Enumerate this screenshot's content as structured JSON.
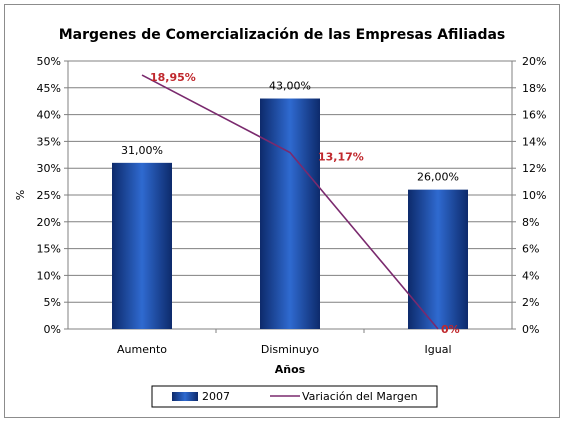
{
  "chart_data": {
    "type": "bar",
    "title": "Margenes de Comercialización de las Empresas Afiliadas",
    "xlabel": "Años",
    "ylabel": "%",
    "categories": [
      "Aumento",
      "Disminuyo",
      "Igual"
    ],
    "ylim": [
      0,
      50
    ],
    "y2lim": [
      0,
      20
    ],
    "yticks": [
      "0%",
      "5%",
      "10%",
      "15%",
      "20%",
      "25%",
      "30%",
      "35%",
      "40%",
      "45%",
      "50%"
    ],
    "y2ticks": [
      "0%",
      "2%",
      "4%",
      "6%",
      "8%",
      "10%",
      "12%",
      "14%",
      "16%",
      "18%",
      "20%"
    ],
    "grid": true,
    "legend_position": "bottom",
    "series": [
      {
        "name": "2007",
        "type": "bar",
        "axis": "left",
        "values": [
          31,
          43,
          26
        ],
        "labels": [
          "31,00%",
          "43,00%",
          "26,00%"
        ],
        "color": "#1f4fa8"
      },
      {
        "name": "Variación del Margen",
        "type": "line",
        "axis": "right",
        "values": [
          18.95,
          13.17,
          0
        ],
        "labels": [
          "18,95%",
          "13,17%",
          "0%"
        ],
        "color": "#7a2a6e",
        "label_color": "#c0282d"
      }
    ]
  }
}
